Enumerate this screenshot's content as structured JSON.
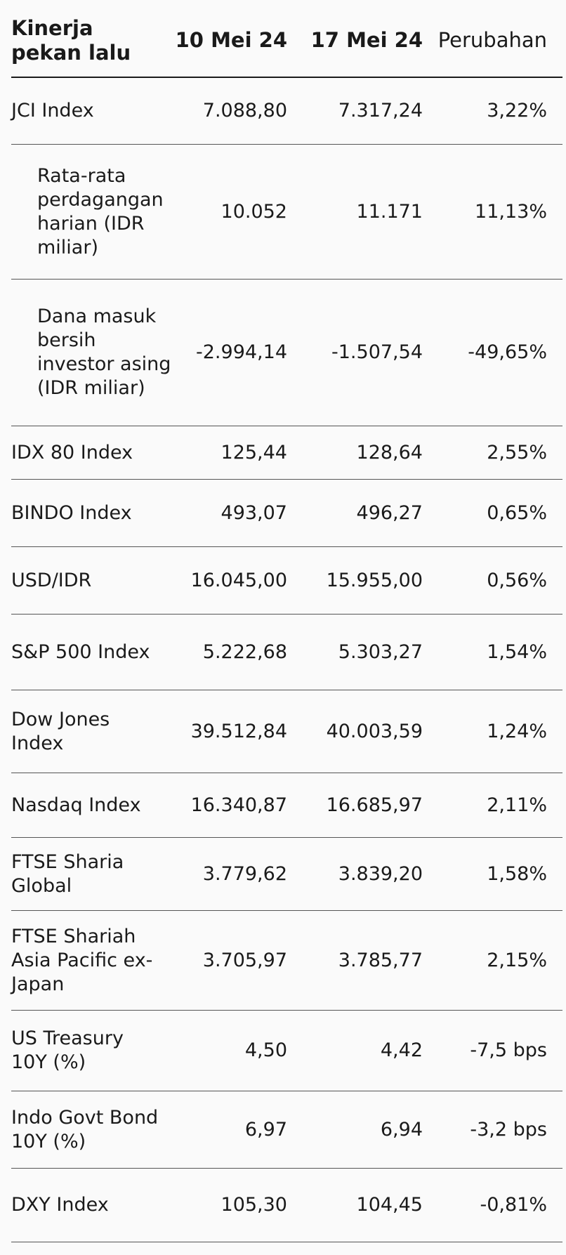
{
  "header": {
    "title": "Kinerja pekan lalu",
    "col1": "10 Mei 24",
    "col2": "17 Mei 24",
    "col3": "Perubahan"
  },
  "rows": [
    {
      "name": "JCI Index",
      "v1": "7.088,80",
      "v2": "7.317,24",
      "chg": "3,22%"
    },
    {
      "name": "Rata-rata perdagangan harian (IDR miliar)",
      "v1": "10.052",
      "v2": "11.171",
      "chg": "11,13%"
    },
    {
      "name": "Dana masuk bersih investor asing (IDR miliar)",
      "v1": "-2.994,14",
      "v2": "-1.507,54",
      "chg": "-49,65%"
    },
    {
      "name": "IDX 80 Index",
      "v1": "125,44",
      "v2": "128,64",
      "chg": "2,55%"
    },
    {
      "name": "BINDO Index",
      "v1": "493,07",
      "v2": "496,27",
      "chg": "0,65%"
    },
    {
      "name": "USD/IDR",
      "v1": "16.045,00",
      "v2": "15.955,00",
      "chg": "0,56%"
    },
    {
      "name": "S&P 500 Index",
      "v1": "5.222,68",
      "v2": "5.303,27",
      "chg": "1,54%"
    },
    {
      "name": "Dow Jones Index",
      "v1": "39.512,84",
      "v2": "40.003,59",
      "chg": "1,24%"
    },
    {
      "name": "Nasdaq Index",
      "v1": "16.340,87",
      "v2": "16.685,97",
      "chg": "2,11%"
    },
    {
      "name": "FTSE Sharia Global",
      "v1": "3.779,62",
      "v2": "3.839,20",
      "chg": "1,58%"
    },
    {
      "name": "FTSE Shariah Asia Pacific ex-Japan",
      "v1": "3.705,97",
      "v2": "3.785,77",
      "chg": "2,15%"
    },
    {
      "name": "US Treasury 10Y (%)",
      "v1": "4,50",
      "v2": "4,42",
      "chg": "-7,5 bps"
    },
    {
      "name": "Indo Govt Bond 10Y (%)",
      "v1": "6,97",
      "v2": "6,94",
      "chg": "-3,2 bps"
    },
    {
      "name": "DXY Index",
      "v1": "105,30",
      "v2": "104,45",
      "chg": "-0,81%"
    }
  ]
}
